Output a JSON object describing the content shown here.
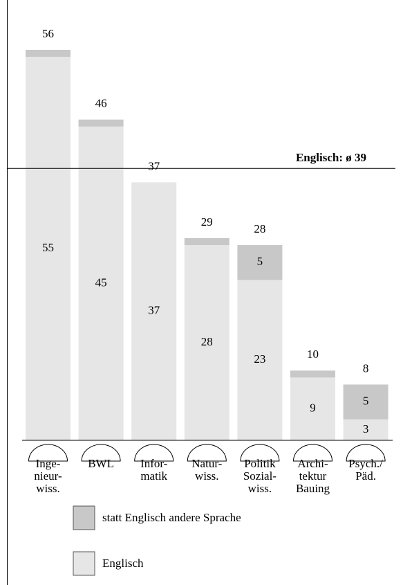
{
  "chart_data": {
    "type": "stacked_bar",
    "categories": [
      [
        "Inge-",
        "nieur-",
        "wiss."
      ],
      [
        "BWL"
      ],
      [
        "Infor-",
        "matik"
      ],
      [
        "Natur-",
        "wiss."
      ],
      [
        "Politik",
        "Sozial-",
        "wiss."
      ],
      [
        "Archi-",
        "tektur",
        "Bauing"
      ],
      [
        "Psych./",
        "Päd."
      ]
    ],
    "series": [
      {
        "name": "Englisch",
        "color": "#e6e6e6",
        "values": [
          55,
          45,
          37,
          28,
          23,
          9,
          3
        ]
      },
      {
        "name": "statt Englisch andere Sprache",
        "color": "#c8c8c8",
        "values": [
          1,
          1,
          0,
          1,
          5,
          1,
          5
        ]
      }
    ],
    "totals": [
      56,
      46,
      37,
      29,
      28,
      10,
      8
    ],
    "reference": {
      "value": 39,
      "label": "Englisch: ø 39"
    },
    "ylim": [
      0,
      56
    ]
  }
}
